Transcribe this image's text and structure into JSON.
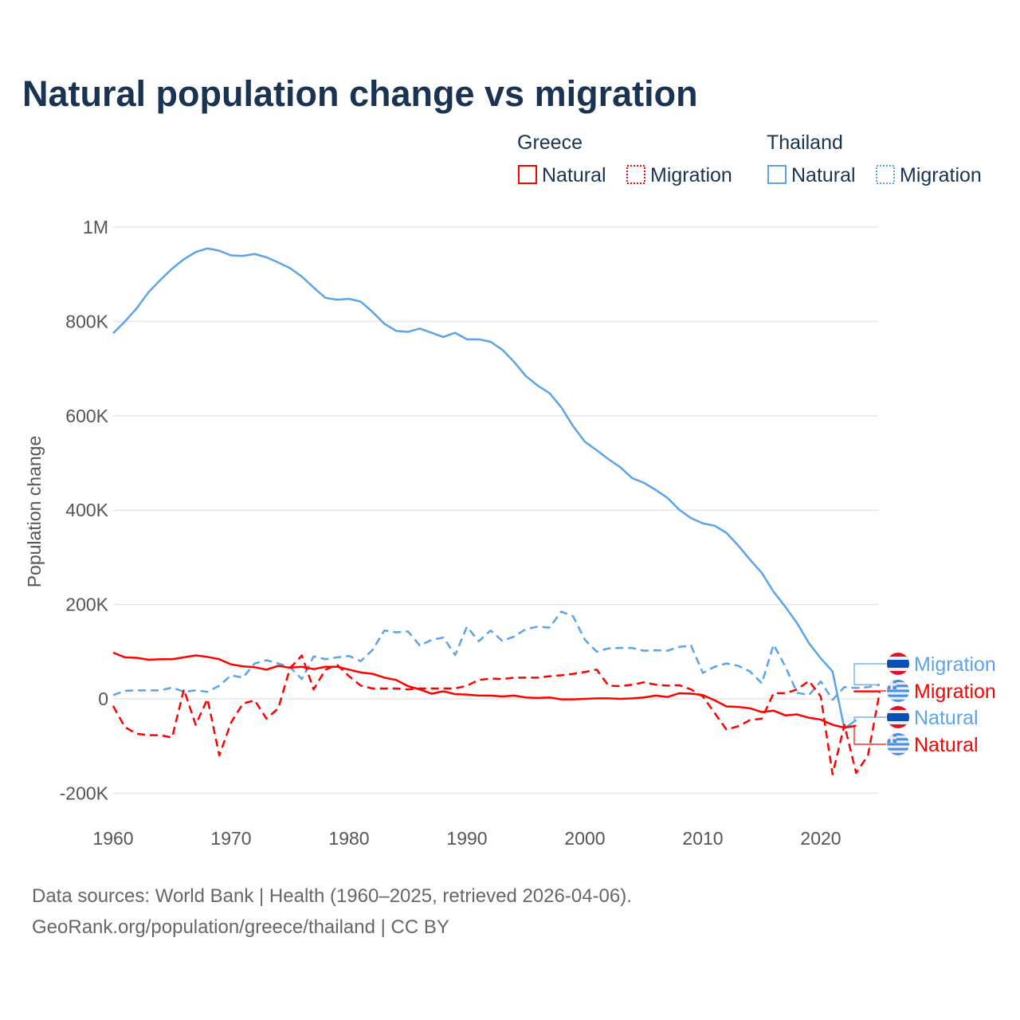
{
  "chart_data": {
    "type": "line",
    "title": "Natural population change vs migration",
    "ylabel": "Population change",
    "xlabel": "",
    "xlim": [
      1960,
      2025
    ],
    "ylim": [
      -200000,
      1000000
    ],
    "x_ticks": [
      1960,
      1970,
      1980,
      1990,
      2000,
      2010,
      2020
    ],
    "x_tick_labels": [
      "1960",
      "1970",
      "1980",
      "1990",
      "2000",
      "2010",
      "2020"
    ],
    "y_ticks": [
      -200000,
      0,
      200000,
      400000,
      600000,
      800000,
      1000000
    ],
    "y_tick_labels": [
      "-200K",
      "0",
      "200K",
      "400K",
      "600K",
      "800K",
      "1M"
    ],
    "grid": true,
    "legend": {
      "placement": "top-right",
      "groups": [
        {
          "title": "Greece",
          "entries": [
            "Natural",
            "Migration"
          ]
        },
        {
          "title": "Thailand",
          "entries": [
            "Natural",
            "Migration"
          ]
        }
      ]
    },
    "start_year": 1960,
    "series": [
      {
        "name": "Thailand Natural",
        "label": "Natural",
        "country": "Thailand",
        "color": "#5ba4e8",
        "dash": false,
        "values": [
          775,
          800,
          828,
          862,
          888,
          912,
          932,
          947,
          955,
          950,
          940,
          939,
          943,
          936,
          925,
          913,
          895,
          872,
          850,
          846,
          848,
          842,
          820,
          795,
          780,
          778,
          785,
          776,
          767,
          776,
          762,
          762,
          757,
          740,
          714,
          684,
          664,
          648,
          618,
          578,
          545,
          527,
          508,
          491,
          468,
          458,
          443,
          426,
          401,
          383,
          372,
          367,
          352,
          325,
          295,
          267,
          227,
          195,
          160,
          118,
          86,
          58,
          -63,
          -45
        ]
      },
      {
        "name": "Thailand Migration",
        "label": "Migration",
        "country": "Thailand",
        "color": "#5ba4e8",
        "dash": true,
        "values": [
          8,
          17,
          18,
          18,
          18,
          24,
          15,
          18,
          15,
          28,
          50,
          45,
          75,
          82,
          75,
          67,
          42,
          90,
          84,
          88,
          91,
          80,
          104,
          145,
          141,
          143,
          113,
          125,
          130,
          93,
          153,
          122,
          145,
          123,
          132,
          148,
          153,
          151,
          185,
          175,
          125,
          100,
          107,
          108,
          108,
          102,
          103,
          102,
          110,
          113,
          55,
          68,
          75,
          70,
          58,
          33,
          115,
          68,
          13,
          8,
          37,
          -2,
          25,
          23,
          25,
          30
        ]
      },
      {
        "name": "Greece Natural",
        "label": "Natural",
        "country": "Greece",
        "color": "#ff0000",
        "dash": false,
        "values": [
          98,
          88,
          87,
          83,
          84,
          84,
          88,
          92,
          89,
          84,
          73,
          69,
          67,
          62,
          70,
          66,
          68,
          63,
          68,
          68,
          62,
          56,
          53,
          45,
          40,
          27,
          20,
          11,
          16,
          10,
          9,
          7,
          7,
          5,
          7,
          3,
          2,
          3,
          -1,
          -1,
          0,
          1,
          1,
          0,
          1,
          3,
          7,
          4,
          12,
          11,
          8,
          -3,
          -16,
          -17,
          -20,
          -28,
          -25,
          -35,
          -33,
          -40,
          -44,
          -55,
          -61,
          -57
        ]
      },
      {
        "name": "Greece Migration",
        "label": "Migration",
        "country": "Greece",
        "color": "#ff0000",
        "dash": true,
        "values": [
          -15,
          -60,
          -74,
          -77,
          -77,
          -82,
          20,
          -55,
          0,
          -120,
          -50,
          -10,
          -3,
          -42,
          -20,
          65,
          92,
          20,
          62,
          72,
          48,
          28,
          22,
          22,
          22,
          20,
          22,
          22,
          22,
          22,
          28,
          40,
          43,
          42,
          45,
          45,
          45,
          48,
          50,
          53,
          57,
          62,
          28,
          27,
          30,
          35,
          30,
          28,
          29,
          20,
          5,
          -30,
          -65,
          -58,
          -45,
          -42,
          12,
          12,
          20,
          38,
          5,
          -160,
          -55,
          -157,
          -120,
          15
        ]
      }
    ],
    "value_units": "thousands",
    "end_labels": [
      "Migration",
      "Migration",
      "Natural",
      "Natural"
    ]
  },
  "footer": {
    "line1": "Data sources: World Bank | Health (1960–2025, retrieved 2026-04-06).",
    "line2": "GeoRank.org/population/greece/thailand | CC BY"
  },
  "colors": {
    "title": "#1a3352",
    "greece": "#ff0000",
    "thailand": "#5ba4e8",
    "axis_text": "#555555",
    "grid": "#e6e6e6"
  }
}
